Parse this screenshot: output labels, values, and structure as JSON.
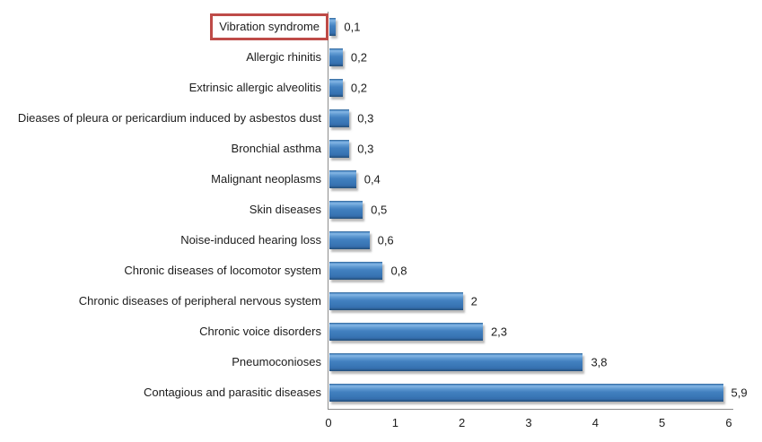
{
  "chart_data": {
    "type": "bar",
    "orientation": "horizontal",
    "title": "",
    "xlabel": "",
    "ylabel": "",
    "categories": [
      "Vibration syndrome",
      "Allergic rhinitis",
      "Extrinsic allergic alveolitis",
      "Dieases of pleura or pericardium induced by asbestos dust",
      "Bronchial asthma",
      "Malignant neoplasms",
      "Skin diseases",
      "Noise-induced hearing loss",
      "Chronic diseases of locomotor system",
      "Chronic diseases of peripheral nervous system",
      "Chronic voice disorders",
      "Pneumoconioses",
      "Contagious and parasitic diseases"
    ],
    "values": [
      0.1,
      0.2,
      0.2,
      0.3,
      0.3,
      0.4,
      0.5,
      0.6,
      0.8,
      2,
      2.3,
      3.8,
      5.9
    ],
    "value_labels": [
      "0,1",
      "0,2",
      "0,2",
      "0,3",
      "0,3",
      "0,4",
      "0,5",
      "0,6",
      "0,8",
      "2",
      "2,3",
      "3,8",
      "5,9"
    ],
    "x_ticks": [
      "0",
      "1",
      "2",
      "3",
      "4",
      "5",
      "6"
    ],
    "xlim": [
      0,
      6
    ],
    "grid": false,
    "legend": false,
    "bar_color": "#3d7bbb",
    "bar_highlight_color": "#85b6e4",
    "bar_edge_color": "#244f7c",
    "axis_color": "#8c8c8c",
    "annotation": {
      "highlighted_category": "Vibration syndrome",
      "box_color": "#be4b48"
    }
  }
}
